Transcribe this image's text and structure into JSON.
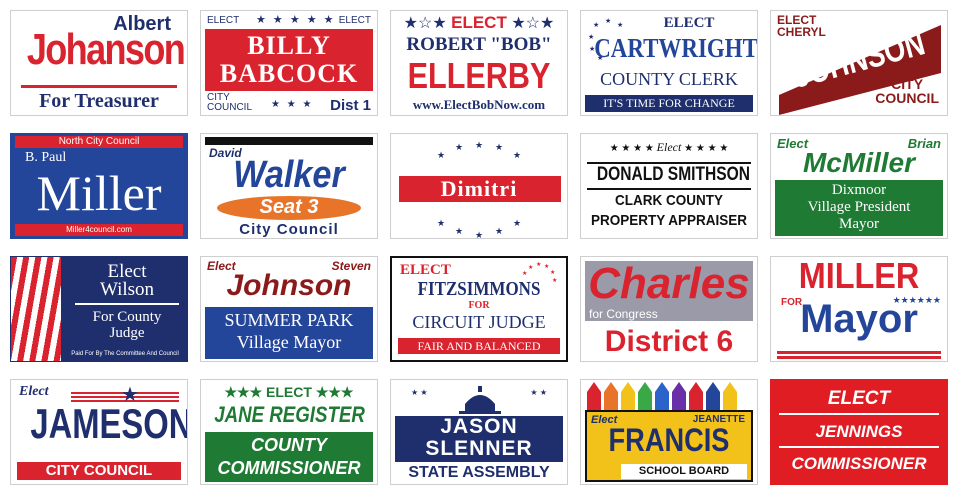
{
  "signs": [
    {
      "l1": "Albert",
      "l2": "Johanson",
      "l3": "For Treasurer"
    },
    {
      "elect_left": "ELECT",
      "elect_right": "ELECT",
      "l1": "BILLY",
      "l2": "BABCOCK",
      "l3": "CITY",
      "l4": "COUNCIL",
      "l5": "Dist 1"
    },
    {
      "l1": "ELECT",
      "l2": "ROBERT \"BOB\"",
      "l3": "ELLERBY",
      "l4": "www.ElectBobNow.com"
    },
    {
      "l1": "ELECT",
      "l2": "CARTWRIGHT",
      "l3": "COUNTY CLERK",
      "l4": "IT'S TIME FOR CHANGE"
    },
    {
      "l1": "ELECT",
      "l2": "CHERYL",
      "l3": "JOHNSON",
      "l4": "CITY",
      "l5": "COUNCIL"
    },
    {
      "l1": "North City Council",
      "l2": "B. Paul",
      "l3": "Miller",
      "l4": "Miller4council.com"
    },
    {
      "l1": "David",
      "l2": "Walker",
      "l3": "Seat 3",
      "l4": "City Council"
    },
    {
      "l1": "Dimitri"
    },
    {
      "l1": "Elect",
      "l2": "DONALD SMITHSON",
      "l3": "CLARK COUNTY",
      "l4": "PROPERTY APPRAISER"
    },
    {
      "l1": "Elect",
      "l2": "Brian",
      "l3": "McMiller",
      "l4": "Dixmoor",
      "l5": "Village President",
      "l6": "Mayor"
    },
    {
      "l1": "Elect",
      "l2": "Wilson",
      "l3": "For County",
      "l4": "Judge",
      "l5": "Paid For By The Committee And Council"
    },
    {
      "l1": "Elect",
      "l2": "Steven",
      "l3": "Johnson",
      "l4": "SUMMER PARK",
      "l5": "Village Mayor"
    },
    {
      "l1": "ELECT",
      "l2": "FITZSIMMONS",
      "l3": "FOR",
      "l4": "CIRCUIT JUDGE",
      "l5": "FAIR AND BALANCED"
    },
    {
      "l1": "Charles",
      "l2": "for Congress",
      "l3": "District 6"
    },
    {
      "l1": "MILLER",
      "l2": "FOR",
      "l3": "Mayor"
    },
    {
      "l1": "Elect",
      "l2": "JAMESON",
      "l3": "CITY COUNCIL"
    },
    {
      "l1": "ELECT",
      "l2": "JANE REGISTER",
      "l3": "COUNTY",
      "l4": "COMMISSIONER"
    },
    {
      "l1": "JASON",
      "l2": "SLENNER",
      "l3": "STATE ASSEMBLY"
    },
    {
      "l1": "Elect",
      "l2": "JEANETTE",
      "l3": "FRANCIS",
      "l4": "SCHOOL BOARD"
    },
    {
      "l1": "ELECT",
      "l2": "JENNINGS",
      "l3": "COMMISSIONER"
    }
  ],
  "colors": {
    "red": "#d9232e",
    "navy": "#1f2f6e",
    "blue": "#24469a",
    "green": "#1f7a34",
    "maroon": "#8b1a1a",
    "orange": "#e8742a"
  }
}
